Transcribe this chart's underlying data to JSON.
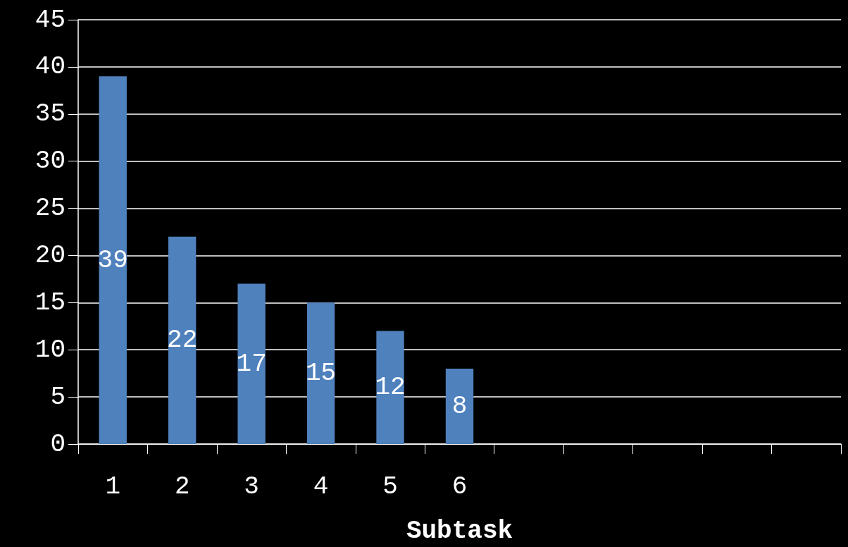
{
  "chart_data": {
    "type": "bar",
    "xlabel": "Subtask",
    "categories": [
      "1",
      "2",
      "3",
      "4",
      "5",
      "6",
      null,
      null,
      null,
      null,
      null
    ],
    "values": [
      39,
      22,
      17,
      15,
      12,
      8,
      null,
      null,
      null,
      null,
      null
    ],
    "color": "#4f81bd",
    "ylim": [
      0,
      45
    ],
    "yticks": [
      0,
      5,
      10,
      15,
      20,
      25,
      30,
      35,
      40,
      45
    ],
    "grid": "y",
    "data_labels": true
  }
}
